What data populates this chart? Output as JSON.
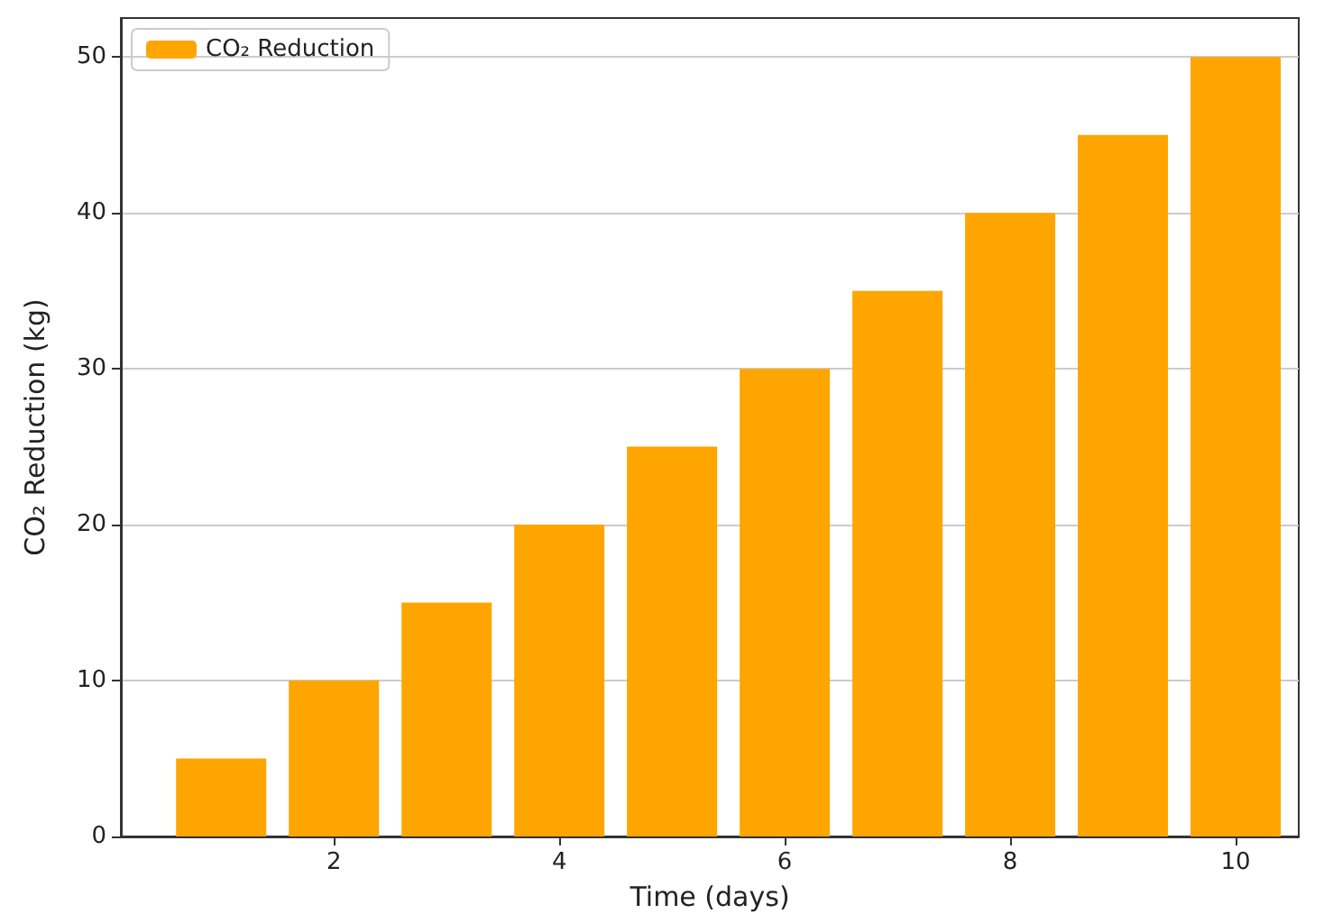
{
  "chart_data": {
    "type": "bar",
    "xlabel": "Time (days)",
    "ylabel": "CO₂ Reduction (kg)",
    "x": [
      1,
      2,
      3,
      4,
      5,
      6,
      7,
      8,
      9,
      10
    ],
    "series": [
      {
        "name": "CO₂ Reduction",
        "color": "#ffa500",
        "values": [
          5,
          10,
          15,
          20,
          25,
          30,
          35,
          40,
          45,
          50
        ]
      }
    ],
    "xlim": [
      0.11,
      10.56
    ],
    "xticks": [
      2,
      4,
      6,
      8,
      10
    ],
    "ylim": [
      0,
      52.5
    ],
    "yticks": [
      0,
      10,
      20,
      30,
      40,
      50
    ],
    "grid": "y",
    "legend": "top left"
  }
}
